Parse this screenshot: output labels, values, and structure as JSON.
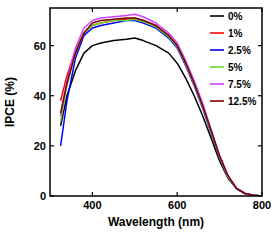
{
  "chart_data": {
    "type": "line",
    "x_label": "Wavelength (nm)",
    "y_label": "IPCE (%)",
    "x": [
      325,
      340,
      360,
      380,
      400,
      420,
      450,
      480,
      500,
      520,
      550,
      580,
      600,
      620,
      640,
      660,
      680,
      700,
      720,
      740,
      760,
      780,
      800
    ],
    "series": [
      {
        "name": "0%",
        "color": "#000000",
        "values": [
          28,
          40,
          50,
          57,
          60,
          61,
          62,
          62.5,
          63,
          62,
          60,
          57,
          53,
          47,
          40,
          32,
          23,
          14,
          7,
          3,
          1,
          0.3,
          0
        ]
      },
      {
        "name": "1%",
        "color": "#ff0000",
        "values": [
          38,
          48,
          58,
          65,
          68,
          69,
          70,
          70.5,
          71,
          70,
          68,
          64,
          60,
          53,
          45,
          36,
          26,
          16,
          8,
          3,
          1,
          0.3,
          0
        ]
      },
      {
        "name": "2.5%",
        "color": "#0000ff",
        "values": [
          20,
          38,
          55,
          64,
          67,
          68,
          69,
          70,
          70,
          69,
          67,
          63,
          59,
          52,
          44,
          35,
          25,
          15,
          7.5,
          3,
          1,
          0.3,
          0
        ]
      },
      {
        "name": "5%",
        "color": "#66dd33",
        "values": [
          30,
          44,
          57,
          65,
          68,
          69,
          70,
          70,
          70.5,
          69.5,
          67.5,
          63.5,
          59.5,
          52.5,
          44.5,
          35.5,
          25.5,
          15.5,
          7.5,
          3,
          1,
          0.3,
          0
        ]
      },
      {
        "name": "7.5%",
        "color": "#cc44ff",
        "values": [
          32,
          46,
          59,
          67,
          70,
          71,
          71.5,
          72,
          72.5,
          71.5,
          69,
          65,
          61,
          54,
          46,
          37,
          26.5,
          16,
          8,
          3,
          1,
          0.3,
          0
        ]
      },
      {
        "name": "12.5%",
        "color": "#800000",
        "values": [
          33,
          45,
          57,
          65,
          69,
          70,
          70.5,
          71,
          71,
          70,
          68,
          64,
          60,
          53,
          45,
          36,
          26,
          16,
          8,
          3,
          1,
          0.3,
          0
        ]
      }
    ],
    "xlim": [
      300,
      800
    ],
    "xticks": [
      400,
      600,
      800
    ],
    "ylim": [
      0,
      75
    ],
    "yticks": [
      0,
      20,
      40,
      60
    ],
    "grid": false,
    "legend": "top-right"
  }
}
